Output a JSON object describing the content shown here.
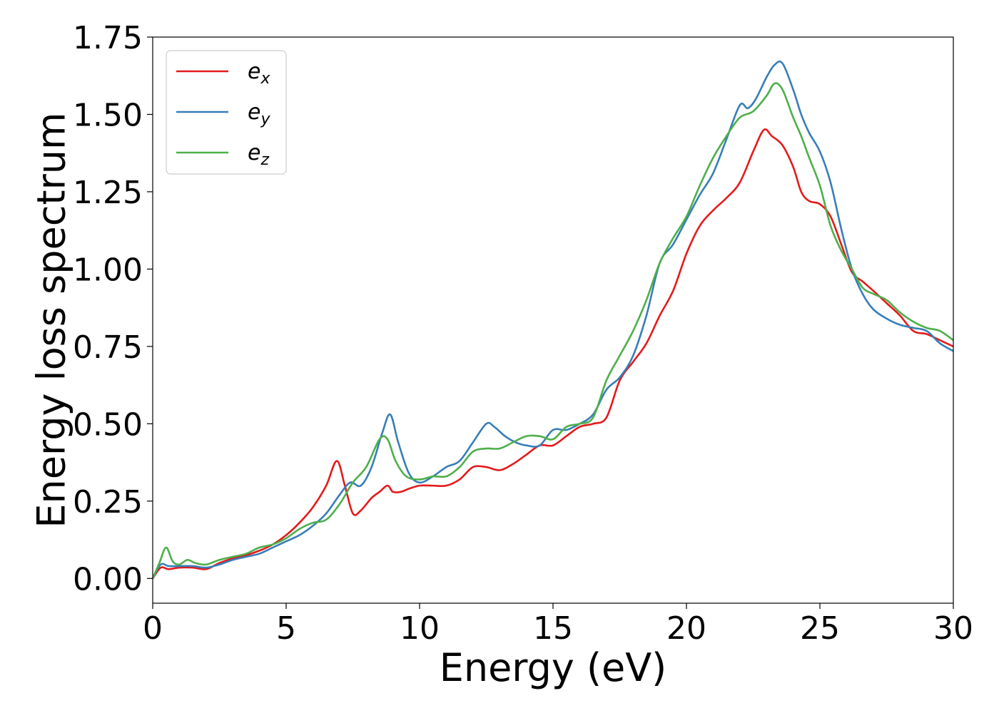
{
  "chart_data": {
    "type": "line",
    "title": "",
    "xlabel": "Energy (eV)",
    "ylabel": "Energy loss spectrum",
    "xlim": [
      0,
      30
    ],
    "ylim": [
      -0.08,
      1.75
    ],
    "xticks": [
      0,
      5,
      10,
      15,
      20,
      25,
      30
    ],
    "xtick_labels": [
      "0",
      "5",
      "10",
      "15",
      "20",
      "25",
      "30"
    ],
    "yticks": [
      0.0,
      0.25,
      0.5,
      0.75,
      1.0,
      1.25,
      1.5,
      1.75
    ],
    "ytick_labels": [
      "0.00",
      "0.25",
      "0.50",
      "0.75",
      "1.00",
      "1.25",
      "1.50",
      "1.75"
    ],
    "grid": false,
    "legend_position": "top-left",
    "series": [
      {
        "name": "e_x",
        "label_base": "e",
        "label_sub": "x",
        "color": "#e41a1c",
        "x": [
          0,
          0.3,
          0.6,
          1.0,
          1.5,
          2.0,
          2.5,
          3.0,
          3.5,
          4.0,
          4.5,
          5.0,
          5.5,
          6.0,
          6.5,
          6.9,
          7.2,
          7.5,
          7.8,
          8.2,
          8.5,
          8.8,
          9.0,
          9.3,
          9.6,
          10.0,
          10.5,
          11.0,
          11.5,
          12.0,
          12.5,
          13.0,
          13.5,
          14.0,
          14.5,
          15.0,
          15.5,
          16.0,
          16.5,
          17.0,
          17.5,
          18.0,
          18.5,
          19.0,
          19.5,
          20.0,
          20.5,
          21.0,
          21.5,
          22.0,
          22.5,
          22.9,
          23.2,
          23.6,
          24.0,
          24.3,
          24.6,
          25.0,
          25.4,
          25.8,
          26.2,
          26.6,
          27.0,
          27.5,
          28.0,
          28.5,
          29.0,
          29.5,
          30.0
        ],
        "y": [
          0.0,
          0.035,
          0.03,
          0.035,
          0.035,
          0.03,
          0.05,
          0.065,
          0.075,
          0.09,
          0.11,
          0.14,
          0.18,
          0.23,
          0.3,
          0.38,
          0.3,
          0.21,
          0.22,
          0.26,
          0.28,
          0.3,
          0.28,
          0.28,
          0.29,
          0.3,
          0.3,
          0.3,
          0.32,
          0.36,
          0.36,
          0.35,
          0.37,
          0.4,
          0.43,
          0.43,
          0.46,
          0.49,
          0.5,
          0.52,
          0.64,
          0.7,
          0.76,
          0.85,
          0.93,
          1.05,
          1.14,
          1.19,
          1.23,
          1.28,
          1.38,
          1.45,
          1.43,
          1.4,
          1.33,
          1.25,
          1.22,
          1.21,
          1.17,
          1.08,
          0.99,
          0.96,
          0.93,
          0.89,
          0.85,
          0.8,
          0.79,
          0.77,
          0.75
        ]
      },
      {
        "name": "e_y",
        "label_base": "e",
        "label_sub": "y",
        "color": "#377eb8",
        "x": [
          0,
          0.3,
          0.6,
          1.0,
          1.5,
          2.0,
          2.5,
          3.0,
          3.5,
          4.0,
          4.5,
          5.0,
          5.5,
          6.0,
          6.5,
          7.0,
          7.4,
          7.8,
          8.2,
          8.6,
          8.9,
          9.2,
          9.6,
          10.0,
          10.5,
          11.0,
          11.5,
          12.0,
          12.5,
          12.8,
          13.2,
          13.6,
          14.0,
          14.5,
          15.0,
          15.5,
          16.0,
          16.5,
          17.0,
          17.5,
          18.0,
          18.5,
          19.0,
          19.5,
          20.0,
          20.5,
          21.0,
          21.5,
          22.0,
          22.3,
          22.6,
          23.0,
          23.3,
          23.6,
          24.0,
          24.3,
          24.6,
          25.0,
          25.4,
          25.8,
          26.2,
          26.6,
          27.0,
          27.5,
          28.0,
          28.5,
          29.0,
          29.5,
          30.0
        ],
        "y": [
          0.0,
          0.045,
          0.04,
          0.04,
          0.04,
          0.035,
          0.045,
          0.06,
          0.07,
          0.08,
          0.1,
          0.12,
          0.14,
          0.17,
          0.21,
          0.27,
          0.31,
          0.3,
          0.36,
          0.47,
          0.53,
          0.44,
          0.34,
          0.31,
          0.33,
          0.36,
          0.38,
          0.44,
          0.5,
          0.49,
          0.46,
          0.44,
          0.43,
          0.43,
          0.48,
          0.48,
          0.5,
          0.53,
          0.61,
          0.65,
          0.72,
          0.85,
          1.02,
          1.08,
          1.16,
          1.24,
          1.31,
          1.42,
          1.53,
          1.52,
          1.55,
          1.62,
          1.66,
          1.665,
          1.58,
          1.5,
          1.44,
          1.38,
          1.28,
          1.13,
          1.0,
          0.92,
          0.87,
          0.84,
          0.82,
          0.81,
          0.8,
          0.76,
          0.735
        ]
      },
      {
        "name": "e_z",
        "label_base": "e",
        "label_sub": "z",
        "color": "#4daf4a",
        "x": [
          0,
          0.25,
          0.5,
          0.75,
          1.0,
          1.3,
          1.6,
          2.0,
          2.5,
          3.0,
          3.5,
          4.0,
          4.5,
          5.0,
          5.5,
          6.0,
          6.5,
          7.0,
          7.5,
          8.0,
          8.5,
          8.8,
          9.1,
          9.5,
          10.0,
          10.5,
          11.0,
          11.5,
          12.0,
          12.5,
          13.0,
          13.5,
          14.0,
          14.5,
          15.0,
          15.5,
          16.0,
          16.5,
          17.0,
          17.5,
          18.0,
          18.5,
          19.0,
          19.5,
          20.0,
          20.5,
          21.0,
          21.5,
          22.0,
          22.5,
          23.0,
          23.3,
          23.6,
          24.0,
          24.3,
          24.6,
          25.0,
          25.4,
          25.8,
          26.2,
          26.6,
          27.0,
          27.5,
          28.0,
          28.5,
          29.0,
          29.5,
          30.0
        ],
        "y": [
          0.0,
          0.05,
          0.1,
          0.055,
          0.045,
          0.06,
          0.05,
          0.045,
          0.06,
          0.07,
          0.08,
          0.1,
          0.11,
          0.13,
          0.16,
          0.18,
          0.19,
          0.24,
          0.31,
          0.36,
          0.45,
          0.45,
          0.38,
          0.33,
          0.32,
          0.33,
          0.33,
          0.36,
          0.41,
          0.42,
          0.42,
          0.44,
          0.46,
          0.46,
          0.45,
          0.49,
          0.5,
          0.52,
          0.64,
          0.72,
          0.8,
          0.9,
          1.02,
          1.1,
          1.17,
          1.27,
          1.36,
          1.43,
          1.49,
          1.51,
          1.56,
          1.6,
          1.58,
          1.49,
          1.43,
          1.36,
          1.27,
          1.14,
          1.06,
          1.0,
          0.94,
          0.92,
          0.9,
          0.86,
          0.83,
          0.81,
          0.8,
          0.77
        ]
      }
    ]
  }
}
